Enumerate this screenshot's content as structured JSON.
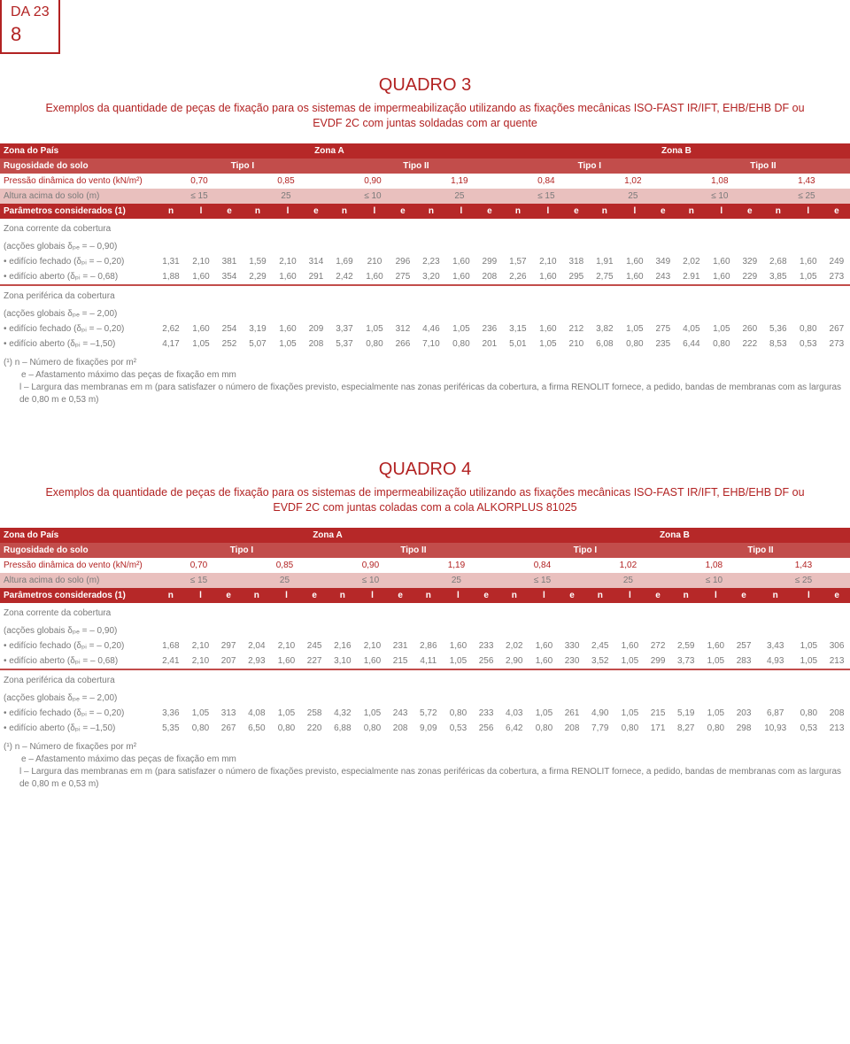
{
  "pageTag": {
    "code": "DA 23",
    "num": "8"
  },
  "q3": {
    "title": "QUADRO 3",
    "caption": "Exemplos da quantidade de peças de fixação para os sistemas de impermeabilização utilizando as fixações mecânicas ISO-FAST IR/IFT, EHB/EHB DF ou EVDF 2C com juntas soldadas com ar quente",
    "headers": {
      "zonaPais": "Zona do País",
      "zonaA": "Zona A",
      "zonaB": "Zona B",
      "rugosidade": "Rugosidade do solo",
      "t1": "Tipo I",
      "t2": "Tipo II",
      "pressao": "Pressão dinâmica do vento (kN/m²)",
      "p": [
        "0,70",
        "0,85",
        "0,90",
        "1,19",
        "0,84",
        "1,02",
        "1,08",
        "1,43"
      ],
      "altura": "Altura acima do solo (m)",
      "a": [
        "≤ 15",
        "25",
        "≤ 10",
        "25",
        "≤ 15",
        "25",
        "≤ 10",
        "≤ 25"
      ],
      "params": "Parâmetros considerados (1)",
      "n": "n",
      "l": "l",
      "e": "e"
    },
    "g1": {
      "title": "Zona corrente da cobertura",
      "sub": "(acções globais δₚₑ = – 0,90)",
      "r1": {
        "label": "• edifício fechado (δₚᵢ = – 0,20)",
        "v": [
          "1,31",
          "2,10",
          "381",
          "1,59",
          "2,10",
          "314",
          "1,69",
          "210",
          "296",
          "2,23",
          "1,60",
          "299",
          "1,57",
          "2,10",
          "318",
          "1,91",
          "1,60",
          "349",
          "2,02",
          "1,60",
          "329",
          "2,68",
          "1,60",
          "249"
        ]
      },
      "r2": {
        "label": "• edifício aberto (δₚᵢ = – 0,68)",
        "v": [
          "1,88",
          "1,60",
          "354",
          "2,29",
          "1,60",
          "291",
          "2,42",
          "1,60",
          "275",
          "3,20",
          "1,60",
          "208",
          "2,26",
          "1,60",
          "295",
          "2,75",
          "1,60",
          "243",
          "2.91",
          "1,60",
          "229",
          "3,85",
          "1,05",
          "273"
        ]
      }
    },
    "g2": {
      "title": "Zona periférica da cobertura",
      "sub": "(acções globais δₚₑ = – 2,00)",
      "r1": {
        "label": "• edifício fechado (δₚᵢ = – 0,20)",
        "v": [
          "2,62",
          "1,60",
          "254",
          "3,19",
          "1,60",
          "209",
          "3,37",
          "1,05",
          "312",
          "4,46",
          "1,05",
          "236",
          "3,15",
          "1,60",
          "212",
          "3,82",
          "1,05",
          "275",
          "4,05",
          "1,05",
          "260",
          "5,36",
          "0,80",
          "267"
        ]
      },
      "r2": {
        "label": "• edifício aberto (δₚᵢ = –1,50)",
        "v": [
          "4,17",
          "1,05",
          "252",
          "5,07",
          "1,05",
          "208",
          "5,37",
          "0,80",
          "266",
          "7,10",
          "0,80",
          "201",
          "5,01",
          "1,05",
          "210",
          "6,08",
          "0,80",
          "235",
          "6,44",
          "0,80",
          "222",
          "8,53",
          "0,53",
          "273"
        ]
      }
    },
    "foot": {
      "l1": "(¹) n – Número de fixações por m²",
      "l2": "e – Afastamento máximo das peças de fixação em mm",
      "l3": "l – Largura das membranas em m (para satisfazer o número de fixações previsto, especialmente nas zonas periféricas da cobertura, a firma RENOLIT fornece, a pedido, bandas de membranas com as larguras de 0,80 m e 0,53 m)"
    }
  },
  "q4": {
    "title": "QUADRO 4",
    "caption": "Exemplos da quantidade de peças de fixação para os sistemas de impermeabilização utilizando as fixações mecânicas ISO-FAST IR/IFT, EHB/EHB DF ou EVDF 2C com juntas coladas com a cola ALKORPLUS 81025",
    "headers": {
      "zonaPais": "Zona do País",
      "zonaA": "Zona A",
      "zonaB": "Zona B",
      "rugosidade": "Rugosidade do solo",
      "t1": "Tipo I",
      "t2": "Tipo II",
      "pressao": "Pressão dinâmica do vento (kN/m²)",
      "p": [
        "0,70",
        "0,85",
        "0,90",
        "1,19",
        "0,84",
        "1,02",
        "1,08",
        "1,43"
      ],
      "altura": "Altura acima do solo (m)",
      "a": [
        "≤ 15",
        "25",
        "≤ 10",
        "25",
        "≤ 15",
        "25",
        "≤ 10",
        "≤ 25"
      ],
      "params": "Parâmetros considerados (1)",
      "n": "n",
      "l": "l",
      "e": "e"
    },
    "g1": {
      "title": "Zona corrente da cobertura",
      "sub": "(acções globais δₚₑ = – 0,90)",
      "r1": {
        "label": "• edifício fechado (δₚᵢ = – 0,20)",
        "v": [
          "1,68",
          "2,10",
          "297",
          "2,04",
          "2,10",
          "245",
          "2,16",
          "2,10",
          "231",
          "2,86",
          "1,60",
          "233",
          "2,02",
          "1,60",
          "330",
          "2,45",
          "1,60",
          "272",
          "2,59",
          "1,60",
          "257",
          "3,43",
          "1,05",
          "306"
        ]
      },
      "r2": {
        "label": "• edifício aberto (δₚᵢ = – 0,68)",
        "v": [
          "2,41",
          "2,10",
          "207",
          "2,93",
          "1,60",
          "227",
          "3,10",
          "1,60",
          "215",
          "4,11",
          "1,05",
          "256",
          "2,90",
          "1,60",
          "230",
          "3,52",
          "1,05",
          "299",
          "3,73",
          "1,05",
          "283",
          "4,93",
          "1,05",
          "213"
        ]
      }
    },
    "g2": {
      "title": "Zona periférica da cobertura",
      "sub": "(acções globais δₚₑ = – 2,00)",
      "r1": {
        "label": "• edifício fechado (δₚᵢ = – 0,20)",
        "v": [
          "3,36",
          "1,05",
          "313",
          "4,08",
          "1,05",
          "258",
          "4,32",
          "1,05",
          "243",
          "5,72",
          "0,80",
          "233",
          "4,03",
          "1,05",
          "261",
          "4,90",
          "1,05",
          "215",
          "5,19",
          "1,05",
          "203",
          "6,87",
          "0,80",
          "208"
        ]
      },
      "r2": {
        "label": "• edifício aberto (δₚᵢ = –1,50)",
        "v": [
          "5,35",
          "0,80",
          "267",
          "6,50",
          "0,80",
          "220",
          "6,88",
          "0,80",
          "208",
          "9,09",
          "0,53",
          "256",
          "6,42",
          "0,80",
          "208",
          "7,79",
          "0,80",
          "171",
          "8,27",
          "0,80",
          "298",
          "10,93",
          "0,53",
          "213"
        ]
      }
    },
    "foot": {
      "l1": "(¹) n – Número de fixações por m²",
      "l2": "e – Afastamento máximo das peças de fixação em mm",
      "l3": "l – Largura das membranas em m (para satisfazer o número de fixações previsto, especialmente nas zonas periféricas da cobertura, a firma RENOLIT fornece, a pedido, bandas de membranas com as larguras de 0,80 m e 0,53 m)"
    }
  }
}
